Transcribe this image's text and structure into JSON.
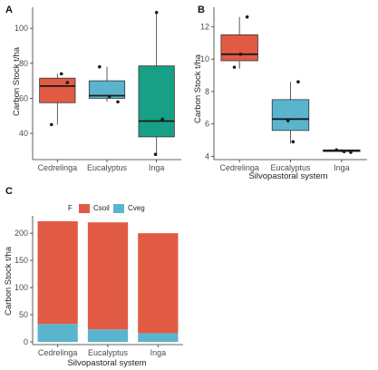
{
  "colors": {
    "red": "#E15B44",
    "blue": "#5AB4CE",
    "teal": "#17A085",
    "median": "#1a1a1a",
    "points": "#1a1a1a"
  },
  "chart_data": [
    {
      "panel": "A",
      "type": "box",
      "categories": [
        "Cedrelinga",
        "Eucalyptus",
        "Inga"
      ],
      "ylabel": "Carbon Stock t/ha",
      "ylim": [
        25,
        112
      ],
      "yticks": [
        40,
        60,
        80,
        100
      ],
      "boxes": [
        {
          "category": "Cedrelinga",
          "whisker_low": 45,
          "q1": 57.5,
          "median": 67,
          "q3": 71.5,
          "whisker_high": 74,
          "color": "red"
        },
        {
          "category": "Eucalyptus",
          "whisker_low": 58,
          "q1": 60,
          "median": 61.5,
          "q3": 70,
          "whisker_high": 78,
          "color": "blue"
        },
        {
          "category": "Inga",
          "whisker_low": 28,
          "q1": 38,
          "median": 47,
          "q3": 78.5,
          "whisker_high": 109,
          "color": "teal"
        }
      ],
      "points": [
        {
          "category": "Cedrelinga",
          "offset": -0.12,
          "y": 45
        },
        {
          "category": "Cedrelinga",
          "offset": 0.08,
          "y": 74
        },
        {
          "category": "Cedrelinga",
          "offset": 0.2,
          "y": 69
        },
        {
          "category": "Eucalyptus",
          "offset": -0.15,
          "y": 78
        },
        {
          "category": "Eucalyptus",
          "offset": 0.05,
          "y": 61
        },
        {
          "category": "Eucalyptus",
          "offset": 0.22,
          "y": 58
        },
        {
          "category": "Inga",
          "offset": -0.02,
          "y": 28
        },
        {
          "category": "Inga",
          "offset": 0.0,
          "y": 109
        },
        {
          "category": "Inga",
          "offset": 0.12,
          "y": 48
        }
      ]
    },
    {
      "panel": "B",
      "type": "box",
      "categories": [
        "Cedrelinga",
        "Eucalyptus",
        "Inga"
      ],
      "xlabel": "Silvopastoral system",
      "ylabel": "Carbon Stock t/ha",
      "ylim": [
        3.8,
        13.2
      ],
      "yticks": [
        4,
        6,
        8,
        10,
        12
      ],
      "boxes": [
        {
          "category": "Cedrelinga",
          "whisker_low": 9.4,
          "q1": 9.9,
          "median": 10.3,
          "q3": 11.5,
          "whisker_high": 12.6,
          "color": "red"
        },
        {
          "category": "Eucalyptus",
          "whisker_low": 4.8,
          "q1": 5.6,
          "median": 6.3,
          "q3": 7.5,
          "whisker_high": 8.6,
          "color": "blue"
        },
        {
          "category": "Inga",
          "whisker_low": 4.25,
          "q1": 4.3,
          "median": 4.35,
          "q3": 4.4,
          "whisker_high": 4.45,
          "color": "teal"
        }
      ],
      "points": [
        {
          "category": "Cedrelinga",
          "offset": -0.1,
          "y": 9.5
        },
        {
          "category": "Cedrelinga",
          "offset": 0.15,
          "y": 12.6
        },
        {
          "category": "Cedrelinga",
          "offset": 0.02,
          "y": 10.3
        },
        {
          "category": "Eucalyptus",
          "offset": 0.15,
          "y": 8.6
        },
        {
          "category": "Eucalyptus",
          "offset": -0.05,
          "y": 6.2
        },
        {
          "category": "Eucalyptus",
          "offset": 0.05,
          "y": 4.9
        },
        {
          "category": "Inga",
          "offset": -0.1,
          "y": 4.4
        },
        {
          "category": "Inga",
          "offset": 0.05,
          "y": 4.3
        },
        {
          "category": "Inga",
          "offset": 0.18,
          "y": 4.25
        }
      ]
    },
    {
      "panel": "C",
      "type": "bar",
      "stacked": true,
      "categories": [
        "Cedrelinga",
        "Eucalyptus",
        "Inga"
      ],
      "xlabel": "Silvopastoral system",
      "ylabel": "Carbon Stock t/ha",
      "ylim": [
        -5,
        232
      ],
      "yticks": [
        0,
        50,
        100,
        150,
        200
      ],
      "legend": {
        "title": "F",
        "position": "top",
        "entries": [
          "Csoil",
          "Cveg"
        ]
      },
      "series": [
        {
          "name": "Cveg",
          "color": "blue",
          "values": [
            33,
            23,
            16
          ]
        },
        {
          "name": "Csoil",
          "color": "red",
          "values": [
            189,
            197,
            184
          ]
        }
      ]
    }
  ]
}
